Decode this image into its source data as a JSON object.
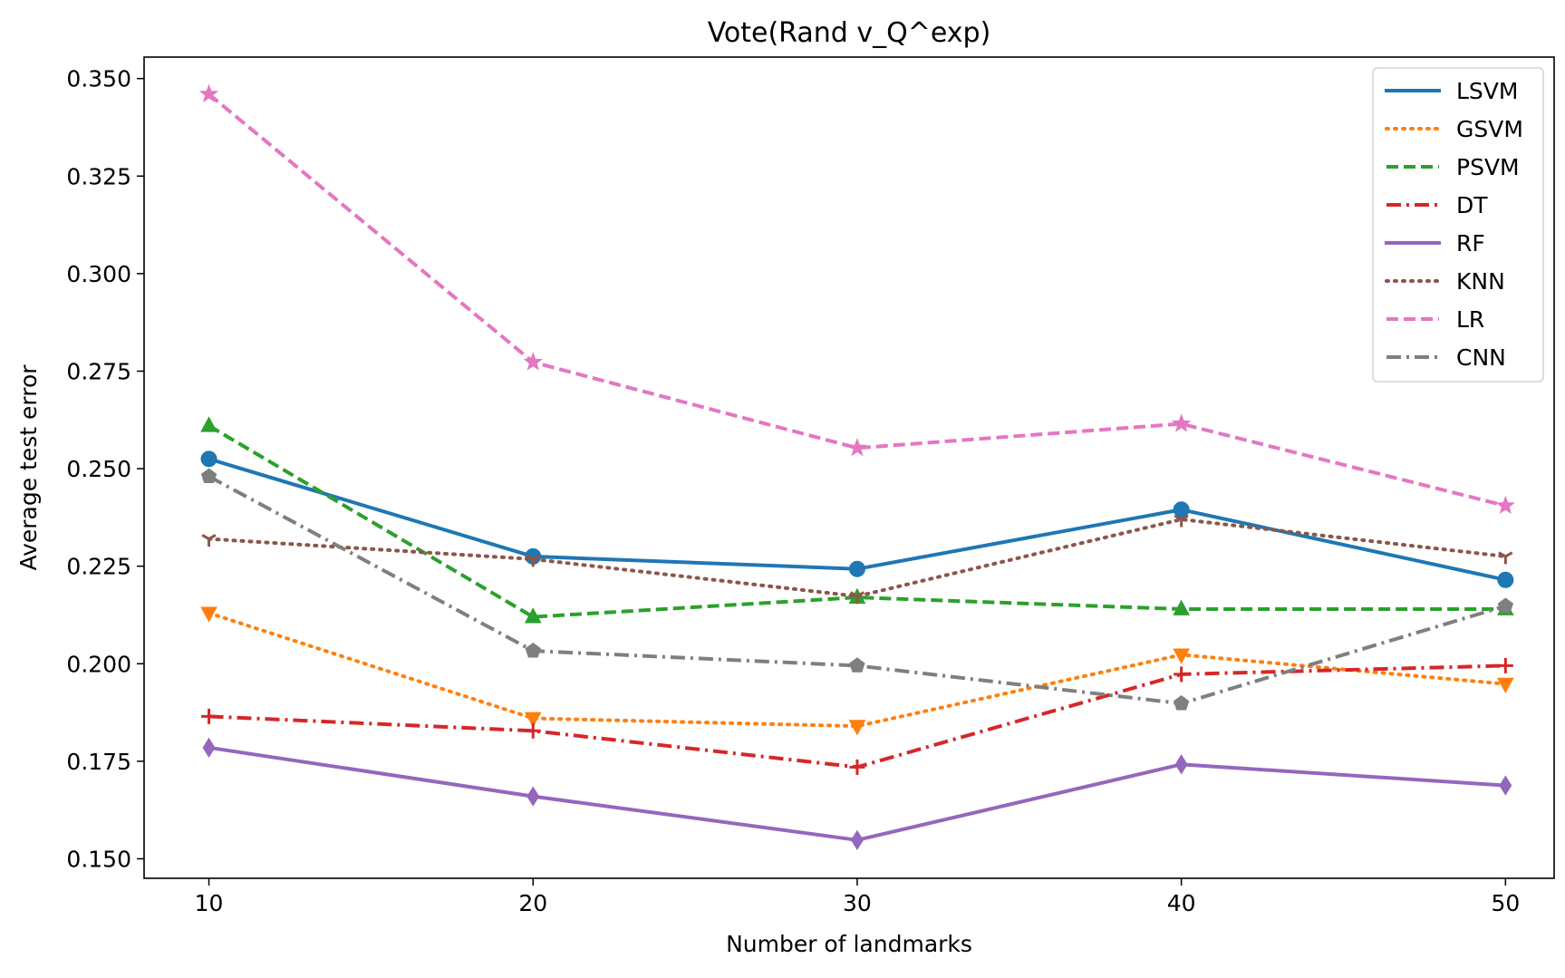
{
  "chart_data": {
    "type": "line",
    "title": "Vote(Rand v_Q^exp)",
    "xlabel": "Number of landmarks",
    "ylabel": "Average test error",
    "x": [
      10,
      20,
      30,
      40,
      50
    ],
    "xticks": [
      "10",
      "20",
      "30",
      "40",
      "50"
    ],
    "yticks": [
      "0.150",
      "0.175",
      "0.200",
      "0.225",
      "0.250",
      "0.275",
      "0.300",
      "0.325",
      "0.350"
    ],
    "xlim": [
      8,
      51.5
    ],
    "ylim": [
      0.145,
      0.3555
    ],
    "grid": false,
    "legend_position": "top-right",
    "series": [
      {
        "name": "LSVM",
        "color": "#1f77b4",
        "dash": "solid",
        "marker": "circle",
        "values": [
          0.2525,
          0.2275,
          0.2243,
          0.2395,
          0.2215
        ]
      },
      {
        "name": "GSVM",
        "color": "#ff7f0e",
        "dash": "dotted",
        "marker": "triangle-down",
        "values": [
          0.213,
          0.186,
          0.184,
          0.2023,
          0.1948
        ]
      },
      {
        "name": "PSVM",
        "color": "#2ca02c",
        "dash": "dashed",
        "marker": "triangle-up",
        "values": [
          0.261,
          0.212,
          0.217,
          0.214,
          0.214
        ]
      },
      {
        "name": "DT",
        "color": "#d62728",
        "dash": "dashdot",
        "marker": "plus",
        "values": [
          0.1865,
          0.1828,
          0.1735,
          0.1973,
          0.1995
        ]
      },
      {
        "name": "RF",
        "color": "#9467bd",
        "dash": "solid",
        "marker": "diamond",
        "values": [
          0.1785,
          0.166,
          0.1548,
          0.1742,
          0.1688
        ]
      },
      {
        "name": "KNN",
        "color": "#8c564b",
        "dash": "dotted",
        "marker": "tri-down",
        "values": [
          0.232,
          0.2268,
          0.2173,
          0.237,
          0.2275
        ]
      },
      {
        "name": "LR",
        "color": "#e377c2",
        "dash": "dashed",
        "marker": "star",
        "values": [
          0.346,
          0.2773,
          0.2553,
          0.2615,
          0.2405
        ]
      },
      {
        "name": "CNN",
        "color": "#7f7f7f",
        "dash": "dashdot",
        "marker": "pentagon",
        "values": [
          0.248,
          0.2033,
          0.1995,
          0.1898,
          0.2148
        ]
      }
    ]
  }
}
